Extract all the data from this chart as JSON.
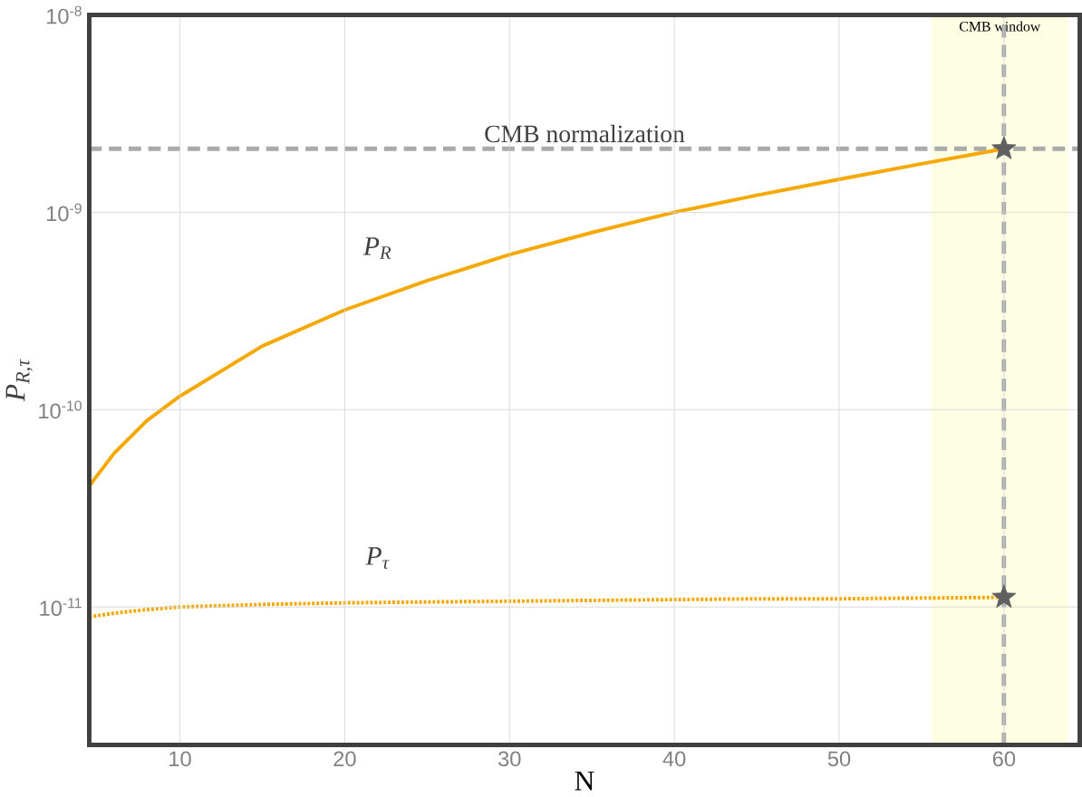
{
  "chart_data": {
    "type": "line",
    "xlabel": "N",
    "ylabel": "P$_{R,τ}$",
    "x": [
      4.5,
      6,
      8,
      10,
      15,
      20,
      25,
      30,
      35,
      40,
      45,
      50,
      55,
      60
    ],
    "series": [
      {
        "name": "P$_{R}$",
        "color": "#f5a800",
        "line_style": "solid",
        "values": [
          4.1e-11,
          6e-11,
          8.8e-11,
          1.17e-10,
          2.1e-10,
          3.2e-10,
          4.5e-10,
          6.1e-10,
          7.9e-10,
          1e-09,
          1.22e-09,
          1.47e-09,
          1.76e-09,
          2.1e-09
        ]
      },
      {
        "name": "P$_{τ}$",
        "color": "#f5a800",
        "line_style": "dotted",
        "values": [
          8.9e-12,
          9.3e-12,
          9.7e-12,
          1e-11,
          1.03e-11,
          1.05e-11,
          1.06e-11,
          1.07e-11,
          1.08e-11,
          1.09e-11,
          1.1e-11,
          1.1e-11,
          1.11e-11,
          1.12e-11
        ]
      },
      {
        "type": "scatter",
        "marker": "star",
        "color": "#606060",
        "values": [
          null,
          null,
          null,
          null,
          null,
          null,
          null,
          null,
          null,
          null,
          null,
          null,
          null,
          2.1e-09
        ]
      },
      {
        "type": "scatter",
        "marker": "star",
        "color": "#606060",
        "values": [
          null,
          null,
          null,
          null,
          null,
          null,
          null,
          null,
          null,
          null,
          null,
          null,
          null,
          1.12e-11
        ]
      }
    ],
    "log": "y",
    "grid": true,
    "marker": "none",
    "xlim": [
      4.5,
      64.6
    ],
    "ylim": [
      2e-12,
      1e-08
    ],
    "xticks": [
      10,
      20,
      30,
      40,
      50,
      60
    ],
    "yticks": [
      {
        "value": 1e-08,
        "label": "10$^{-8}$"
      },
      {
        "value": 1e-09,
        "label": "10$^{-9}$"
      },
      {
        "value": 1e-10,
        "label": "10$^{-10}$"
      },
      {
        "value": 1e-11,
        "label": "10$^{-11}$"
      }
    ],
    "ref_lines": [
      {
        "axis": "y",
        "value": 2.1e-09,
        "label": "CMB normalization",
        "color": "#aaaaaa",
        "line_style": "dashed"
      },
      {
        "axis": "x",
        "value": 60,
        "color": "#aaaaaa",
        "line_style": "dashed"
      }
    ],
    "bands": [
      {
        "axis": "x",
        "from": 55.6,
        "to": 63.9,
        "label": "CMB window",
        "color": "#fefee4"
      }
    ]
  }
}
